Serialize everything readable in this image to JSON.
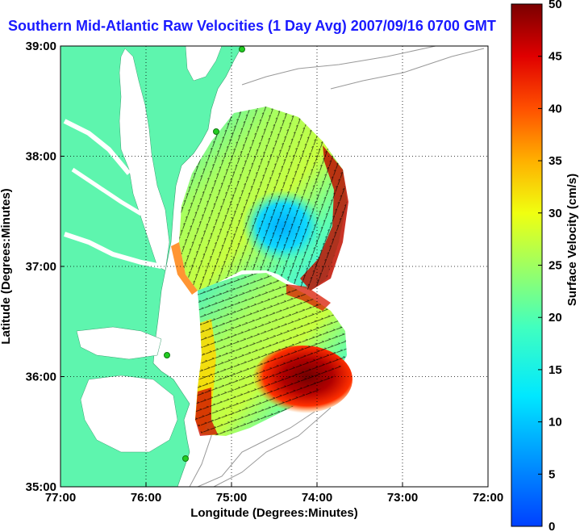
{
  "title": "Southern Mid-Atlantic Raw Velocities (1 Day Avg) 2007/09/16 0700 GMT",
  "map": {
    "xlabel": "Longitude (Degrees:Minutes)",
    "ylabel": "Latitude (Degrees:Minutes)",
    "x_ticks": [
      "77:00",
      "76:00",
      "75:00",
      "74:00",
      "73:00",
      "72:00"
    ],
    "y_ticks": [
      "39:00",
      "38:00",
      "37:00",
      "36:00",
      "35:00"
    ],
    "lon_range": [
      -77,
      -72
    ],
    "lat_range": [
      35,
      39
    ],
    "land_color": "#5ef5ae",
    "grid": "dotted",
    "sites_color": "#22cc22"
  },
  "colorbar": {
    "label": "Surface Velocity (cm/s)",
    "ticks": [
      "50",
      "45",
      "40",
      "35",
      "30",
      "25",
      "20",
      "15",
      "10",
      "5",
      "0"
    ],
    "range": [
      0,
      50
    ],
    "colormap": "jet"
  }
}
